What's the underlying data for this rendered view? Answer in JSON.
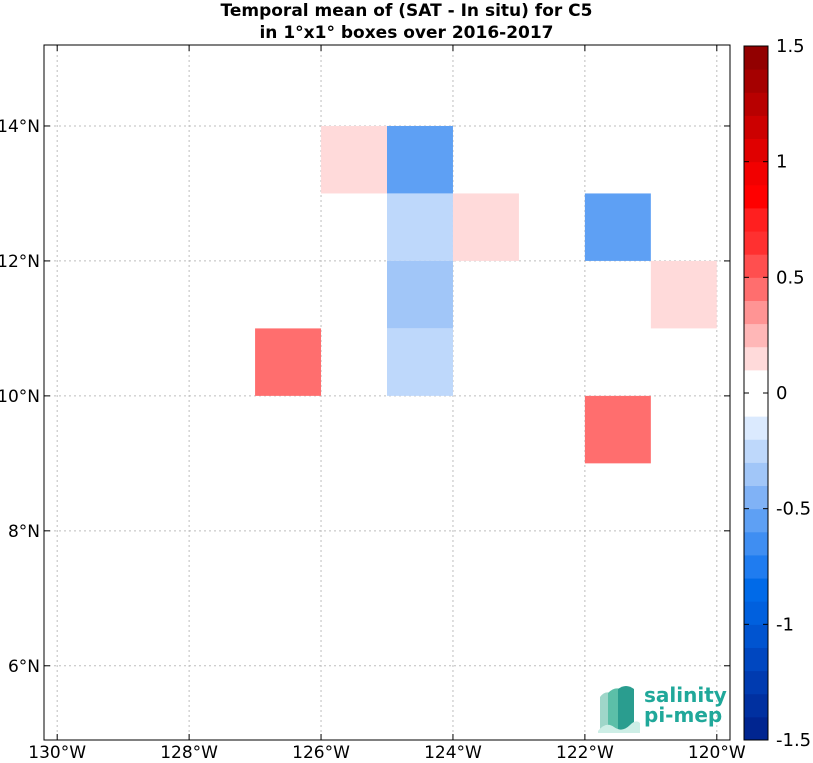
{
  "chart_data": {
    "type": "heatmap",
    "title_line1": "Temporal mean of (SAT - In situ) for C5",
    "title_line2": "in 1°x1° boxes over 2016-2017",
    "xlim": [
      -130.2,
      -119.8
    ],
    "ylim": [
      4.9,
      15.2
    ],
    "x_ticks": [
      {
        "value": -130,
        "label": "130°W"
      },
      {
        "value": -128,
        "label": "128°W"
      },
      {
        "value": -126,
        "label": "126°W"
      },
      {
        "value": -124,
        "label": "124°W"
      },
      {
        "value": -122,
        "label": "122°W"
      },
      {
        "value": -120,
        "label": "120°W"
      }
    ],
    "y_ticks": [
      {
        "value": 6,
        "label": "6°N"
      },
      {
        "value": 8,
        "label": "8°N"
      },
      {
        "value": 10,
        "label": "10°N"
      },
      {
        "value": 12,
        "label": "12°N"
      },
      {
        "value": 14,
        "label": "14°N"
      }
    ],
    "grid": true,
    "cells": [
      {
        "lon": -126,
        "lat": 13,
        "value": 0.15
      },
      {
        "lon": -125,
        "lat": 13,
        "value": -0.55
      },
      {
        "lon": -125,
        "lat": 12,
        "value": -0.25
      },
      {
        "lon": -124,
        "lat": 12,
        "value": 0.15
      },
      {
        "lon": -125,
        "lat": 11,
        "value": -0.35
      },
      {
        "lon": -125,
        "lat": 10,
        "value": -0.25
      },
      {
        "lon": -127,
        "lat": 10,
        "value": 0.45
      },
      {
        "lon": -122,
        "lat": 12,
        "value": -0.55
      },
      {
        "lon": -121,
        "lat": 11,
        "value": 0.15
      },
      {
        "lon": -122,
        "lat": 9,
        "value": 0.45
      }
    ],
    "colorbar": {
      "min": -1.5,
      "max": 1.5,
      "step": 0.1,
      "ticks": [
        {
          "value": 1.5,
          "label": "1.5"
        },
        {
          "value": 1,
          "label": "1"
        },
        {
          "value": 0.5,
          "label": "0.5"
        },
        {
          "value": 0,
          "label": "0"
        },
        {
          "value": -0.5,
          "label": "-0.5"
        },
        {
          "value": -1,
          "label": "-1"
        },
        {
          "value": -1.5,
          "label": "-1.5"
        }
      ],
      "colors_positive": [
        "#ffffff",
        "#ffdada",
        "#ffb7b7",
        "#ff9494",
        "#ff6e6e",
        "#ff4f4f",
        "#ff3030",
        "#ff1f1f",
        "#ff0000",
        "#f20000",
        "#e00000",
        "#cc0000",
        "#b80000",
        "#a50000",
        "#920000",
        "#800000"
      ],
      "colors_negative": [
        "#ffffff",
        "#dbeafe",
        "#bed8fb",
        "#a1c6f8",
        "#80b2f6",
        "#5ea0f4",
        "#3f8ef2",
        "#1f7cf0",
        "#006ae8",
        "#0060de",
        "#0054d0",
        "#0047c0",
        "#003bb0",
        "#0030a0",
        "#002590",
        "#001a80"
      ]
    },
    "logo": {
      "line1": "salinity",
      "line2": "pi-mep"
    }
  }
}
